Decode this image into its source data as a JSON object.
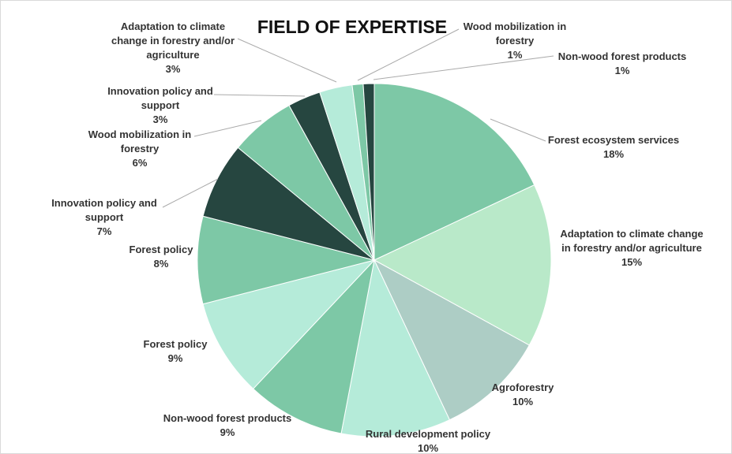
{
  "chart_data": {
    "type": "pie",
    "title": "FIELD OF EXPERTISE",
    "categories": [
      "Forest ecosystem services",
      "Adaptation to climate change in forestry and/or agriculture",
      "Agroforestry",
      "Rural development policy",
      "Non-wood forest products",
      "Forest policy",
      "Forest policy",
      "Innovation policy and support",
      "Wood mobilization in forestry",
      "Innovation policy and support",
      "Adaptation to climate change in forestry and/or agriculture",
      "Wood mobilization in forestry",
      "Non-wood forest products"
    ],
    "values": [
      18,
      15,
      10,
      10,
      9,
      9,
      8,
      7,
      6,
      3,
      3,
      1,
      1
    ],
    "value_labels": [
      "18%",
      "15%",
      "10%",
      "10%",
      "9%",
      "9%",
      "8%",
      "7%",
      "6%",
      "3%",
      "3%",
      "1%",
      "1%"
    ],
    "colors": [
      "#7dc8a6",
      "#b9e9c9",
      "#adcdc5",
      "#b5ebd9",
      "#7dc8a6",
      "#b5ebd9",
      "#7dc8a6",
      "#264640",
      "#7dc8a6",
      "#264640",
      "#b5ebd9",
      "#7dc8a6",
      "#264640"
    ]
  }
}
